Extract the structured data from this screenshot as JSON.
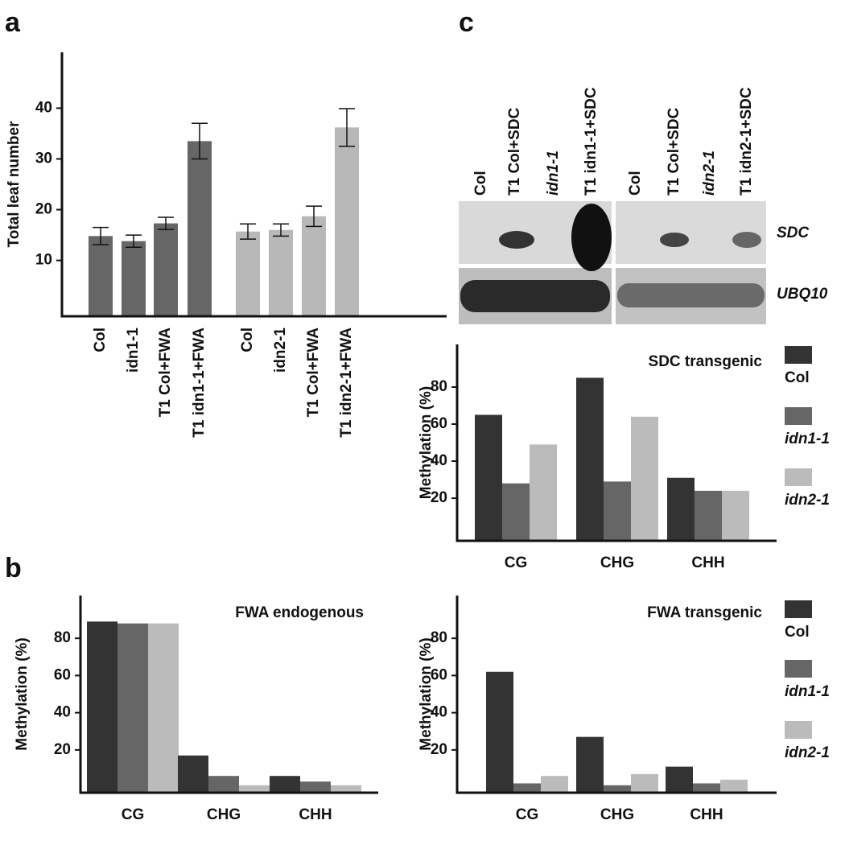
{
  "panels": [
    "a",
    "b",
    "c"
  ],
  "blot": {
    "lanes": [
      "Col",
      "T1 Col+SDC",
      "idn1-1",
      "T1 idn1-1+SDC",
      "Col",
      "T1 Col+SDC",
      "idn2-1",
      "T1 idn2-1+SDC"
    ],
    "rows": [
      "SDC",
      "UBQ10"
    ]
  },
  "chart_data": [
    {
      "type": "bar",
      "ylabel": "Total leaf number",
      "categories": [
        "Col",
        "idn1-1",
        "T1 Col+FWA",
        "T1 idn1-1+FWA",
        "Col",
        "idn2-1",
        "T1 Col+FWA",
        "T1 idn2-1+FWA"
      ],
      "values": [
        14.8,
        13.8,
        17.3,
        33.5,
        15.7,
        16.0,
        18.7,
        36.2
      ],
      "errors": [
        1.7,
        1.2,
        1.2,
        3.5,
        1.5,
        1.2,
        2.0,
        3.7
      ],
      "colors": [
        "#666666",
        "#666666",
        "#666666",
        "#666666",
        "#b8b8b8",
        "#b8b8b8",
        "#b8b8b8",
        "#b8b8b8"
      ],
      "ylim": [
        -1,
        51
      ],
      "yticks": [
        10,
        20,
        30,
        40
      ]
    },
    {
      "type": "grouped_bar",
      "title": "SDC transgenic",
      "ylabel": "Methylation (%)",
      "categories": [
        "CG",
        "CHG",
        "CHH"
      ],
      "series": [
        {
          "name": "Col",
          "color": "#333333",
          "values": [
            65,
            85,
            31
          ]
        },
        {
          "name": "idn1-1",
          "color": "#666666",
          "values": [
            28,
            29,
            24
          ]
        },
        {
          "name": "idn2-1",
          "color": "#bbbbbb",
          "values": [
            49,
            64,
            24
          ]
        }
      ],
      "ylim": [
        -3,
        103
      ],
      "yticks": [
        20,
        40,
        60,
        80
      ],
      "legend": "right"
    },
    {
      "type": "grouped_bar",
      "title": "FWA endogenous",
      "ylabel": "Methylation (%)",
      "categories": [
        "CG",
        "CHG",
        "CHH"
      ],
      "series": [
        {
          "name": "Col",
          "color": "#333333",
          "values": [
            89,
            17,
            6
          ]
        },
        {
          "name": "idn1-1",
          "color": "#666666",
          "values": [
            88,
            6,
            3
          ]
        },
        {
          "name": "idn2-1",
          "color": "#bbbbbb",
          "values": [
            88,
            1,
            1
          ]
        }
      ],
      "ylim": [
        -3,
        103
      ],
      "yticks": [
        20,
        40,
        60,
        80
      ],
      "legend": false
    },
    {
      "type": "grouped_bar",
      "title": "FWA transgenic",
      "ylabel": "Methylation (%)",
      "categories": [
        "CG",
        "CHG",
        "CHH"
      ],
      "series": [
        {
          "name": "Col",
          "color": "#333333",
          "values": [
            62,
            27,
            11
          ]
        },
        {
          "name": "idn1-1",
          "color": "#666666",
          "values": [
            2,
            1,
            2
          ]
        },
        {
          "name": "idn2-1",
          "color": "#bbbbbb",
          "values": [
            6,
            7,
            4
          ]
        }
      ],
      "ylim": [
        -3,
        103
      ],
      "yticks": [
        20,
        40,
        60,
        80
      ],
      "legend": "right"
    }
  ]
}
